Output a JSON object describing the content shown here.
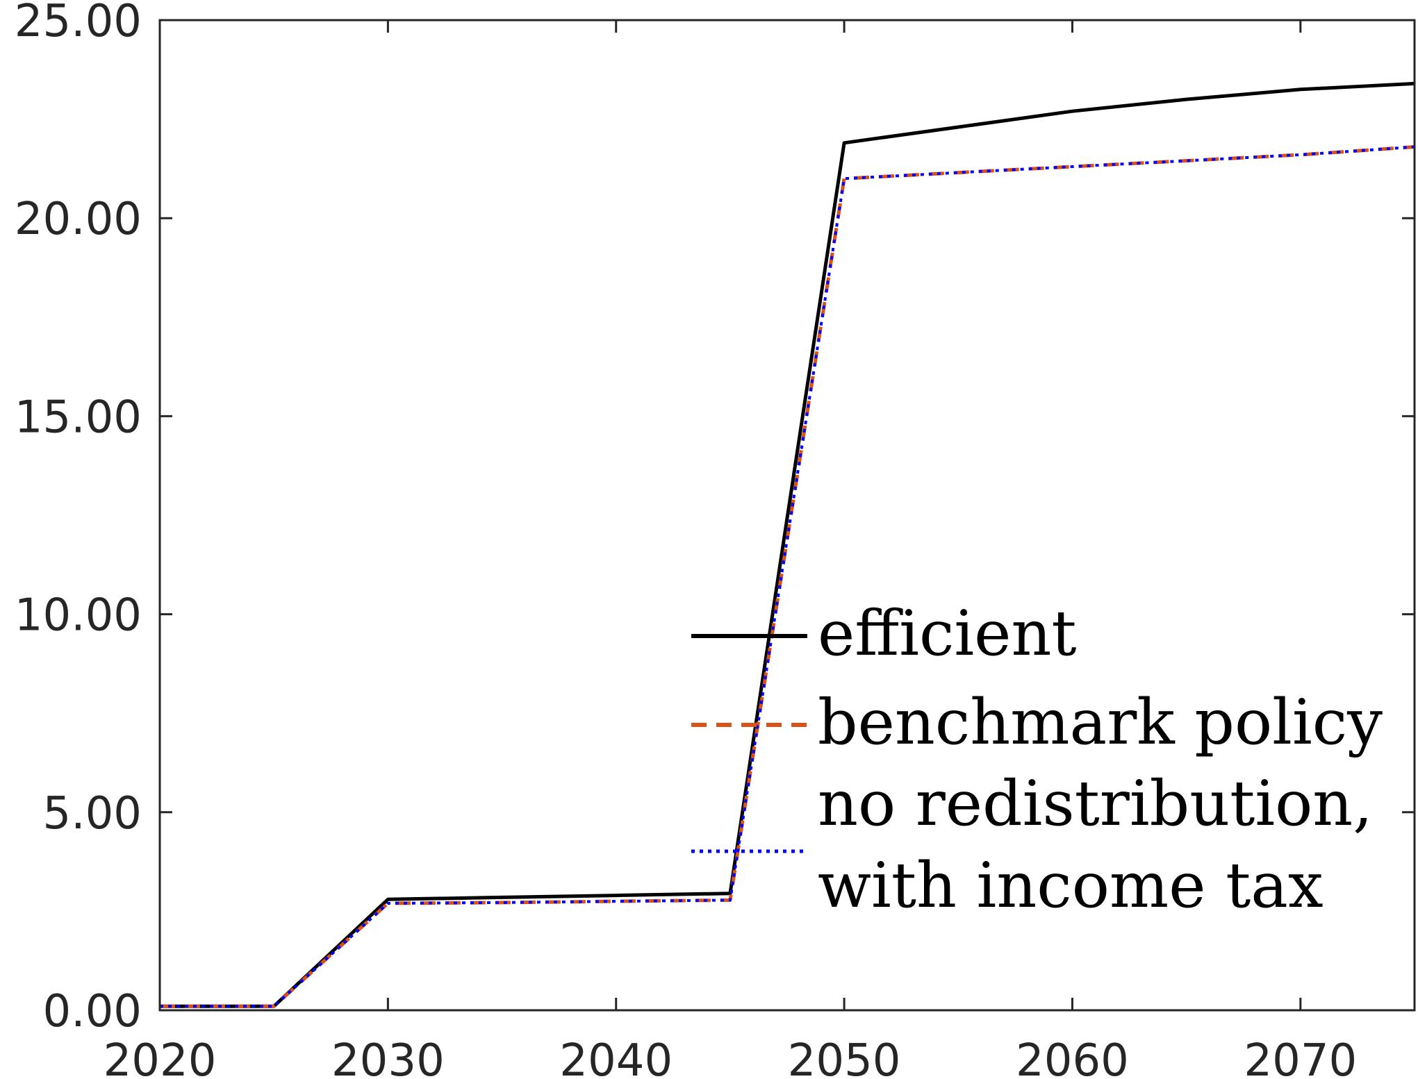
{
  "chart_data": {
    "type": "line",
    "title": "",
    "xlabel": "",
    "ylabel": "",
    "xlim": [
      2020,
      2075
    ],
    "ylim": [
      0,
      25
    ],
    "x_ticks": [
      "2020",
      "2030",
      "2040",
      "2050",
      "2060",
      "2070"
    ],
    "y_ticks": [
      "0.00",
      "5.00",
      "10.00",
      "15.00",
      "20.00",
      "25.00"
    ],
    "grid": false,
    "legend_position": "lower-right",
    "series": [
      {
        "name": "efficient",
        "color": "#000000",
        "style": "solid",
        "x": [
          2020,
          2025,
          2030,
          2035,
          2040,
          2045,
          2050,
          2055,
          2060,
          2065,
          2070,
          2075
        ],
        "values": [
          0.1,
          0.1,
          2.8,
          2.85,
          2.9,
          2.95,
          21.9,
          22.3,
          22.7,
          23.0,
          23.25,
          23.4
        ]
      },
      {
        "name": "benchmark policy",
        "color": "#D95319",
        "style": "dashed",
        "x": [
          2020,
          2025,
          2030,
          2035,
          2040,
          2045,
          2050,
          2055,
          2060,
          2065,
          2070,
          2075
        ],
        "values": [
          0.1,
          0.1,
          2.7,
          2.72,
          2.75,
          2.78,
          21.0,
          21.15,
          21.3,
          21.45,
          21.6,
          21.8
        ]
      },
      {
        "name_lines": [
          "no redistribution,",
          "with income tax"
        ],
        "color": "#0000FF",
        "style": "dotted",
        "x": [
          2020,
          2025,
          2030,
          2035,
          2040,
          2045,
          2050,
          2055,
          2060,
          2065,
          2070,
          2075
        ],
        "values": [
          0.1,
          0.1,
          2.7,
          2.72,
          2.75,
          2.78,
          21.0,
          21.15,
          21.3,
          21.45,
          21.6,
          21.8
        ]
      }
    ]
  }
}
